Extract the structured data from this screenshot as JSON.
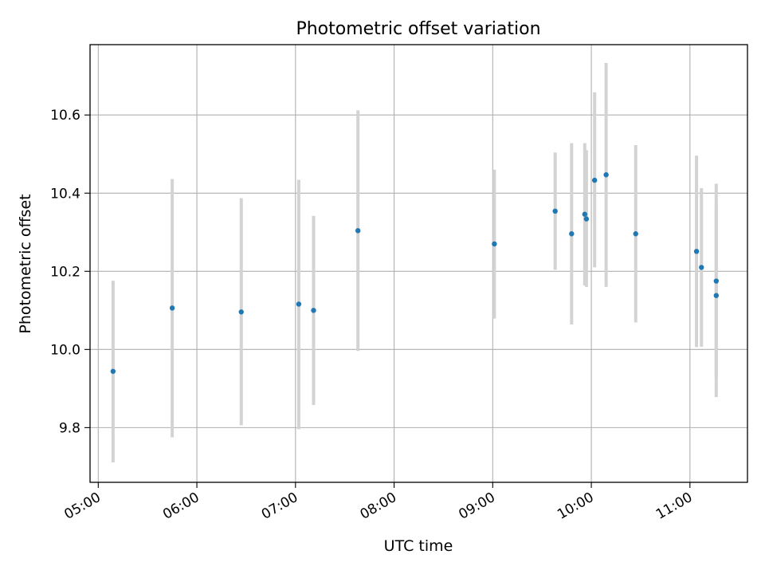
{
  "chart_data": {
    "type": "scatter",
    "title": "Photometric offset variation",
    "xlabel": "UTC time",
    "ylabel": "Photometric offset",
    "x_type": "time",
    "xlim": [
      "04:55",
      "11:35"
    ],
    "ylim": [
      9.66,
      10.78
    ],
    "x_ticks": [
      "05:00",
      "06:00",
      "07:00",
      "08:00",
      "09:00",
      "10:00",
      "11:00"
    ],
    "y_ticks": [
      9.8,
      10.0,
      10.2,
      10.4,
      10.6
    ],
    "y_tick_labels": [
      "9.8",
      "10.0",
      "10.2",
      "10.4",
      "10.6"
    ],
    "grid": true,
    "point_color": "#1f77b4",
    "errorbar_color": "#d3d3d3",
    "points": [
      {
        "x": "05:09",
        "y": 9.944,
        "yerr_low": 9.711,
        "yerr_high": 10.176
      },
      {
        "x": "05:45",
        "y": 10.106,
        "yerr_low": 9.775,
        "yerr_high": 10.436
      },
      {
        "x": "06:27",
        "y": 10.096,
        "yerr_low": 9.806,
        "yerr_high": 10.387
      },
      {
        "x": "07:02",
        "y": 10.116,
        "yerr_low": 9.796,
        "yerr_high": 10.434
      },
      {
        "x": "07:11",
        "y": 10.1,
        "yerr_low": 9.858,
        "yerr_high": 10.342
      },
      {
        "x": "07:38",
        "y": 10.304,
        "yerr_low": 9.996,
        "yerr_high": 10.612
      },
      {
        "x": "09:01",
        "y": 10.27,
        "yerr_low": 10.079,
        "yerr_high": 10.46
      },
      {
        "x": "09:38",
        "y": 10.354,
        "yerr_low": 10.204,
        "yerr_high": 10.504
      },
      {
        "x": "09:48",
        "y": 10.296,
        "yerr_low": 10.064,
        "yerr_high": 10.528
      },
      {
        "x": "09:56",
        "y": 10.346,
        "yerr_low": 10.164,
        "yerr_high": 10.528
      },
      {
        "x": "09:57",
        "y": 10.334,
        "yerr_low": 10.16,
        "yerr_high": 10.51
      },
      {
        "x": "10:02",
        "y": 10.433,
        "yerr_low": 10.21,
        "yerr_high": 10.658
      },
      {
        "x": "10:09",
        "y": 10.447,
        "yerr_low": 10.16,
        "yerr_high": 10.733
      },
      {
        "x": "10:27",
        "y": 10.296,
        "yerr_low": 10.069,
        "yerr_high": 10.523
      },
      {
        "x": "11:04",
        "y": 10.251,
        "yerr_low": 10.006,
        "yerr_high": 10.496
      },
      {
        "x": "11:07",
        "y": 10.21,
        "yerr_low": 10.007,
        "yerr_high": 10.413
      },
      {
        "x": "11:16",
        "y": 10.175,
        "yerr_low": 9.928,
        "yerr_high": 10.424
      },
      {
        "x": "11:16",
        "y": 10.138,
        "yerr_low": 9.878,
        "yerr_high": 10.37
      }
    ]
  }
}
